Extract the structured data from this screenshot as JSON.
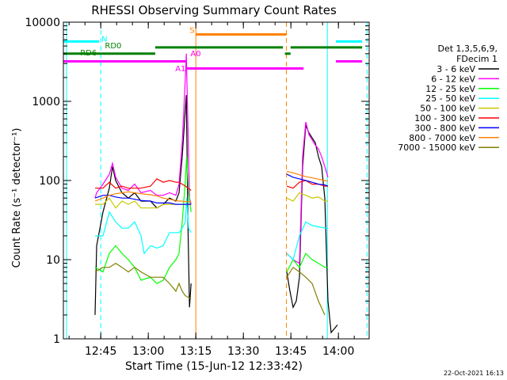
{
  "chart_data": {
    "type": "line",
    "title": "RHESSI Observing Summary Count Rates",
    "xlabel": "Start Time (15-Jun-12 12:33:42)",
    "ylabel": "Count Rate (s⁻¹ detector⁻¹)",
    "ylim": [
      1,
      10000
    ],
    "yscale": "log",
    "xlim_minutes": [
      -0.5,
      96
    ],
    "x_ticks": [
      {
        "m": 11.3,
        "label": "12:45"
      },
      {
        "m": 26.3,
        "label": "13:00"
      },
      {
        "m": 41.3,
        "label": "13:15"
      },
      {
        "m": 56.3,
        "label": "13:30"
      },
      {
        "m": 71.3,
        "label": "13:45"
      },
      {
        "m": 86.3,
        "label": "14:00"
      }
    ],
    "y_ticks": [
      {
        "v": 1,
        "label": "1"
      },
      {
        "v": 10,
        "label": "10"
      },
      {
        "v": 100,
        "label": "100"
      },
      {
        "v": 1000,
        "label": "1000"
      },
      {
        "v": 10000,
        "label": "10000"
      }
    ],
    "legend_header": [
      "Det 1,3,5,6,9,",
      "FDecim 1"
    ],
    "legend_position": "right",
    "series": [
      {
        "name": "3 - 6 keV",
        "color": "#000000",
        "points": [
          [
            9.5,
            2
          ],
          [
            10,
            15
          ],
          [
            12,
            40
          ],
          [
            14,
            80
          ],
          [
            15,
            150
          ],
          [
            16,
            100
          ],
          [
            18,
            70
          ],
          [
            20,
            60
          ],
          [
            22,
            70
          ],
          [
            24,
            55
          ],
          [
            27,
            55
          ],
          [
            29,
            45
          ],
          [
            31,
            50
          ],
          [
            33,
            60
          ],
          [
            35,
            55
          ],
          [
            36,
            70
          ],
          [
            37,
            200
          ],
          [
            38,
            800
          ],
          [
            38.3,
            1200
          ],
          [
            38.8,
            30
          ],
          [
            39.3,
            2.5
          ],
          [
            39.8,
            5
          ],
          null,
          [
            70,
            7
          ],
          [
            71,
            4
          ],
          [
            72,
            2.5
          ],
          [
            73,
            3
          ],
          [
            74,
            6
          ],
          [
            75,
            150
          ],
          [
            76,
            500
          ],
          [
            77,
            400
          ],
          [
            79,
            300
          ],
          [
            80,
            200
          ],
          [
            81,
            150
          ],
          [
            82,
            60
          ],
          [
            83,
            3
          ],
          [
            84,
            1.2
          ],
          [
            86,
            1.5
          ]
        ]
      },
      {
        "name": "6 - 12 keV",
        "color": "#ff00ff",
        "points": [
          [
            9.5,
            60
          ],
          [
            10,
            70
          ],
          [
            12,
            90
          ],
          [
            14,
            120
          ],
          [
            15,
            165
          ],
          [
            16,
            110
          ],
          [
            18,
            80
          ],
          [
            20,
            75
          ],
          [
            22,
            90
          ],
          [
            24,
            70
          ],
          [
            27,
            75
          ],
          [
            29,
            65
          ],
          [
            31,
            65
          ],
          [
            33,
            70
          ],
          [
            35,
            65
          ],
          [
            36,
            90
          ],
          [
            37,
            300
          ],
          [
            38,
            2000
          ],
          [
            38.3,
            4000
          ],
          [
            38.8,
            500
          ],
          [
            39.3,
            60
          ],
          [
            39.8,
            50
          ],
          null,
          [
            70,
            12
          ],
          [
            72,
            10
          ],
          [
            74,
            9
          ],
          [
            75,
            200
          ],
          [
            76,
            550
          ],
          [
            77,
            380
          ],
          [
            79,
            280
          ],
          [
            80,
            250
          ],
          [
            81,
            200
          ],
          [
            82,
            150
          ],
          [
            83,
            110
          ]
        ]
      },
      {
        "name": "12 - 25 keV",
        "color": "#00ff00",
        "points": [
          [
            9.5,
            8
          ],
          [
            12,
            7
          ],
          [
            14,
            12
          ],
          [
            16,
            15
          ],
          [
            18,
            12
          ],
          [
            20,
            10
          ],
          [
            22,
            8
          ],
          [
            24,
            5.5
          ],
          [
            27,
            6
          ],
          [
            29,
            5
          ],
          [
            31,
            5.5
          ],
          [
            33,
            8
          ],
          [
            35,
            10
          ],
          [
            36,
            12
          ],
          [
            37,
            30
          ],
          [
            38,
            100
          ],
          [
            38.4,
            200
          ],
          [
            39,
            70
          ],
          [
            39.8,
            40
          ],
          null,
          [
            70,
            7
          ],
          [
            72,
            10
          ],
          [
            74,
            8
          ],
          [
            76,
            12
          ],
          [
            78,
            10
          ],
          [
            80,
            9
          ],
          [
            82,
            8
          ],
          [
            83,
            8
          ]
        ]
      },
      {
        "name": "25 - 50 keV",
        "color": "#00ffff",
        "points": [
          [
            9.5,
            20
          ],
          [
            12,
            20
          ],
          [
            14,
            40
          ],
          [
            16,
            30
          ],
          [
            18,
            25
          ],
          [
            20,
            25
          ],
          [
            22,
            30
          ],
          [
            24,
            20
          ],
          [
            25,
            12
          ],
          [
            27,
            15
          ],
          [
            29,
            14
          ],
          [
            31,
            15
          ],
          [
            33,
            22
          ],
          [
            35,
            22
          ],
          [
            36,
            22
          ],
          [
            37,
            25
          ],
          [
            38,
            30
          ],
          [
            38.4,
            60
          ],
          [
            39,
            25
          ],
          [
            39.8,
            22
          ],
          null,
          [
            70,
            12
          ],
          [
            72,
            10
          ],
          [
            74,
            20
          ],
          [
            76,
            30
          ],
          [
            78,
            27
          ],
          [
            80,
            26
          ],
          [
            82,
            25
          ],
          [
            83,
            25
          ]
        ]
      },
      {
        "name": "50 - 100 keV",
        "color": "#c8c800",
        "points": [
          [
            9.5,
            50
          ],
          [
            12,
            50
          ],
          [
            14,
            60
          ],
          [
            16,
            45
          ],
          [
            18,
            55
          ],
          [
            20,
            50
          ],
          [
            22,
            55
          ],
          [
            24,
            45
          ],
          [
            27,
            45
          ],
          [
            29,
            45
          ],
          [
            31,
            50
          ],
          [
            33,
            50
          ],
          [
            35,
            50
          ],
          [
            36,
            50
          ],
          [
            37,
            50
          ],
          [
            38,
            50
          ],
          [
            39.8,
            50
          ],
          null,
          [
            70,
            60
          ],
          [
            72,
            55
          ],
          [
            74,
            70
          ],
          [
            76,
            65
          ],
          [
            78,
            60
          ],
          [
            80,
            62
          ],
          [
            82,
            55
          ],
          [
            83,
            55
          ]
        ]
      },
      {
        "name": "100 - 300 keV",
        "color": "#ff0000",
        "points": [
          [
            9.5,
            80
          ],
          [
            12,
            80
          ],
          [
            14,
            95
          ],
          [
            16,
            80
          ],
          [
            18,
            85
          ],
          [
            20,
            80
          ],
          [
            22,
            80
          ],
          [
            24,
            80
          ],
          [
            27,
            85
          ],
          [
            29,
            105
          ],
          [
            31,
            95
          ],
          [
            33,
            100
          ],
          [
            35,
            95
          ],
          [
            36,
            95
          ],
          [
            37,
            90
          ],
          [
            38,
            85
          ],
          [
            39.8,
            75
          ],
          null,
          [
            70,
            85
          ],
          [
            72,
            80
          ],
          [
            74,
            95
          ],
          [
            76,
            100
          ],
          [
            78,
            90
          ],
          [
            80,
            90
          ],
          [
            82,
            85
          ],
          [
            83,
            85
          ]
        ]
      },
      {
        "name": "300 - 800 keV",
        "color": "#0000ff",
        "points": [
          [
            9.5,
            60
          ],
          [
            12,
            65
          ],
          [
            14,
            65
          ],
          [
            16,
            62
          ],
          [
            18,
            60
          ],
          [
            20,
            60
          ],
          [
            22,
            58
          ],
          [
            24,
            56
          ],
          [
            27,
            55
          ],
          [
            29,
            52
          ],
          [
            31,
            52
          ],
          [
            33,
            52
          ],
          [
            35,
            50
          ],
          [
            36,
            50
          ],
          [
            37,
            50
          ],
          [
            38,
            50
          ],
          [
            39.8,
            50
          ],
          null,
          [
            70,
            120
          ],
          [
            72,
            110
          ],
          [
            74,
            105
          ],
          [
            76,
            100
          ],
          [
            78,
            95
          ],
          [
            80,
            90
          ],
          [
            82,
            88
          ],
          [
            83,
            85
          ]
        ]
      },
      {
        "name": "800 - 7000 keV",
        "color": "#ff8000",
        "points": [
          [
            9.5,
            55
          ],
          [
            12,
            60
          ],
          [
            14,
            65
          ],
          [
            16,
            68
          ],
          [
            18,
            70
          ],
          [
            20,
            72
          ],
          [
            22,
            70
          ],
          [
            24,
            68
          ],
          [
            27,
            66
          ],
          [
            29,
            64
          ],
          [
            31,
            60
          ],
          [
            33,
            58
          ],
          [
            35,
            56
          ],
          [
            36,
            55
          ],
          [
            37,
            55
          ],
          [
            38,
            54
          ],
          [
            39.8,
            54
          ],
          null,
          [
            70,
            130
          ],
          [
            72,
            125
          ],
          [
            74,
            118
          ],
          [
            76,
            112
          ],
          [
            78,
            108
          ],
          [
            80,
            104
          ],
          [
            82,
            100
          ],
          [
            83,
            98
          ]
        ]
      },
      {
        "name": "7000 - 15000 keV",
        "color": "#808000",
        "points": [
          [
            9.5,
            7
          ],
          [
            12,
            8
          ],
          [
            14,
            8
          ],
          [
            16,
            9
          ],
          [
            18,
            8
          ],
          [
            20,
            7
          ],
          [
            22,
            8
          ],
          [
            24,
            7
          ],
          [
            27,
            6
          ],
          [
            29,
            6
          ],
          [
            31,
            6
          ],
          [
            33,
            5
          ],
          [
            35,
            4
          ],
          [
            36,
            5
          ],
          [
            37,
            4
          ],
          [
            38,
            3.5
          ],
          [
            39.8,
            3.2
          ],
          null,
          [
            70,
            6
          ],
          [
            72,
            8
          ],
          [
            74,
            7
          ],
          [
            76,
            6
          ],
          [
            78,
            5
          ],
          [
            80,
            3
          ],
          [
            82,
            2
          ]
        ]
      }
    ],
    "flag_bars": [
      {
        "label": "N",
        "color": "#00ffff",
        "value": 5700,
        "label_at": [
          11.5,
          5700
        ],
        "spans": [
          [
            -0.5,
            10.8
          ],
          [
            85.5,
            93.8
          ]
        ]
      },
      {
        "label": "S",
        "color": "#ff8000",
        "value": 7000,
        "label_at": [
          39.3,
          7300
        ],
        "spans": [
          [
            41.3,
            69.9
          ]
        ]
      },
      {
        "label": "RD0",
        "color": "#008000",
        "value": 4800,
        "label_at": [
          12.6,
          4700
        ],
        "spans": [
          [
            28.5,
            68.8
          ],
          [
            71.2,
            93.8
          ]
        ]
      },
      {
        "label": "RD6",
        "color": "#008000",
        "value": 4000,
        "label_at": [
          4.8,
          3800
        ],
        "spans": [
          [
            -0.5,
            28.5
          ],
          [
            69.4,
            71.2
          ]
        ]
      },
      {
        "label": "A0",
        "color": "#ff00ff",
        "value": 3200,
        "label_at": [
          39.6,
          3700
        ],
        "spans": [
          [
            -0.5,
            38.2
          ],
          [
            85.5,
            93.8
          ]
        ]
      },
      {
        "label": "A1",
        "color": "#ff00ff",
        "value": 2600,
        "label_at": [
          34.8,
          2400
        ],
        "spans": [
          [
            38.3,
            75.3
          ]
        ]
      }
    ],
    "vlines": [
      {
        "m": 0.5,
        "color": "#00ffff",
        "dash": false
      },
      {
        "m": 11.3,
        "color": "#00ffff",
        "dash": true
      },
      {
        "m": 41.3,
        "color": "#ff8000",
        "dash": false
      },
      {
        "m": 69.9,
        "color": "#ff8000",
        "dash": true
      },
      {
        "m": 82.8,
        "color": "#00ffff",
        "dash": false
      },
      {
        "m": 95.3,
        "color": "#00ffff",
        "dash": true
      }
    ]
  },
  "footer_date": "22-Oct-2021 16:13"
}
